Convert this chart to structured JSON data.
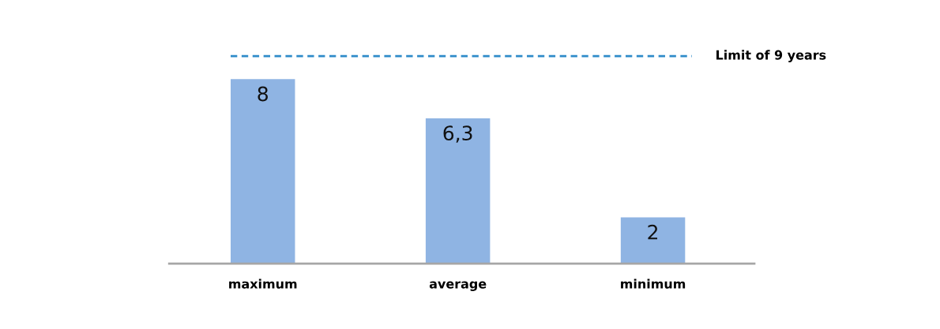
{
  "chart_data": {
    "type": "bar",
    "categories": [
      "maximum",
      "average",
      "minimum"
    ],
    "values": [
      8,
      6.3,
      2
    ],
    "value_labels": [
      "8",
      "6,3",
      "2"
    ],
    "color": "#8fb4e3",
    "tick_labels": "x",
    "grid": false,
    "legend": false,
    "ref_lines": [
      {
        "axis": "y",
        "value": 9,
        "label": "Limit of 9 years",
        "color": "#2e8bc9",
        "line_style": "dashed"
      }
    ]
  }
}
